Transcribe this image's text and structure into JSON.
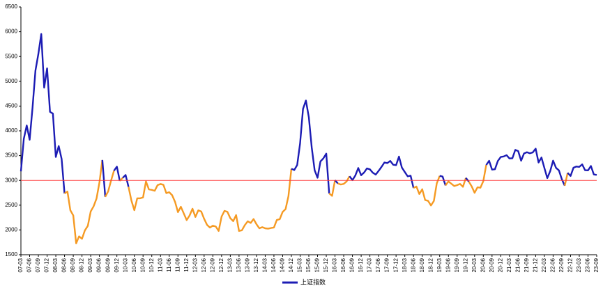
{
  "chart_data": {
    "type": "line",
    "categories": [
      "07-03",
      null,
      null,
      "07-06",
      null,
      null,
      "07-09",
      null,
      null,
      "07-12",
      null,
      null,
      "08-03",
      null,
      null,
      "08-06",
      null,
      null,
      "08-09",
      null,
      null,
      "08-12",
      null,
      null,
      "09-03",
      null,
      null,
      "09-06",
      null,
      null,
      "09-09",
      null,
      null,
      "09-12",
      null,
      null,
      "10-03",
      null,
      null,
      "10-06",
      null,
      null,
      "10-09",
      null,
      null,
      "10-12",
      null,
      null,
      "11-03",
      null,
      null,
      "11-06",
      null,
      null,
      "11-09",
      null,
      null,
      "11-12",
      null,
      null,
      "12-03",
      null,
      null,
      "12-06",
      null,
      null,
      "12-09",
      null,
      null,
      "12-12",
      null,
      null,
      "13-03",
      null,
      null,
      "13-06",
      null,
      null,
      "13-09",
      null,
      null,
      "13-12",
      null,
      null,
      "14-03",
      null,
      null,
      "14-06",
      null,
      null,
      "14-09",
      null,
      null,
      "14-12",
      null,
      null,
      "15-03",
      null,
      null,
      "15-06",
      null,
      null,
      "15-09",
      null,
      null,
      "15-12",
      null,
      null,
      "16-03",
      null,
      null,
      "16-06",
      null,
      null,
      "16-09",
      null,
      null,
      "16-12",
      null,
      null,
      "17-03",
      null,
      null,
      "17-06",
      null,
      null,
      "17-09",
      null,
      null,
      "17-12",
      null,
      null,
      "18-03",
      null,
      null,
      "18-06",
      null,
      null,
      "18-09",
      null,
      null,
      "18-12",
      null,
      null,
      "19-03",
      null,
      null,
      "19-06",
      null,
      null,
      "19-09",
      null,
      null,
      "19-12",
      null,
      null,
      "20-03",
      null,
      null,
      "20-06",
      null,
      null,
      "20-09",
      null,
      null,
      "20-12",
      null,
      null,
      "21-03",
      null,
      null,
      "21-06",
      null,
      null,
      "21-09",
      null,
      null,
      "21-12",
      null,
      null,
      "22-03",
      null,
      null,
      "22-06",
      null,
      null,
      "22-09",
      null,
      null,
      "22-12",
      null,
      null,
      "23-03",
      null,
      null,
      "23-06",
      null,
      null,
      "23-09"
    ],
    "series": [
      {
        "name": "上证指数",
        "color": "#1c1cb4",
        "below_color": "#f59a23",
        "values": [
          3183,
          3841,
          4109,
          3821,
          4471,
          5218,
          5552,
          5955,
          4871,
          5262,
          4383,
          4349,
          3473,
          3693,
          3433,
          2736,
          2775,
          2397,
          2293,
          1729,
          1871,
          1821,
          1991,
          2082,
          2373,
          2477,
          2633,
          2959,
          3412,
          2668,
          2779,
          2996,
          3195,
          3277,
          2989,
          3051,
          3109,
          2870,
          2592,
          2398,
          2638,
          2639,
          2656,
          2979,
          2820,
          2808,
          2790,
          2905,
          2928,
          2911,
          2743,
          2762,
          2701,
          2568,
          2359,
          2468,
          2333,
          2199,
          2292,
          2428,
          2262,
          2396,
          2373,
          2225,
          2103,
          2047,
          2086,
          2069,
          1980,
          2269,
          2385,
          2365,
          2237,
          2178,
          2300,
          1979,
          1994,
          2098,
          2175,
          2141,
          2220,
          2116,
          2033,
          2056,
          2033,
          2026,
          2039,
          2048,
          2201,
          2217,
          2364,
          2420,
          2683,
          3235,
          3210,
          3310,
          3748,
          4442,
          4612,
          4277,
          3664,
          3206,
          3053,
          3383,
          3445,
          3539,
          2738,
          2688,
          3004,
          2938,
          2917,
          2930,
          2979,
          3085,
          3005,
          3100,
          3250,
          3104,
          3159,
          3242,
          3223,
          3155,
          3117,
          3192,
          3273,
          3361,
          3349,
          3393,
          3317,
          3307,
          3481,
          3259,
          3169,
          3082,
          3095,
          2847,
          2876,
          2725,
          2821,
          2603,
          2588,
          2494,
          2585,
          2941,
          3091,
          3078,
          2899,
          2979,
          2933,
          2886,
          2905,
          2929,
          2871,
          3050,
          2977,
          2880,
          2750,
          2860,
          2852,
          2985,
          3310,
          3396,
          3218,
          3225,
          3392,
          3473,
          3483,
          3509,
          3442,
          3447,
          3615,
          3591,
          3397,
          3544,
          3568,
          3547,
          3564,
          3640,
          3361,
          3462,
          3252,
          3047,
          3186,
          3399,
          3253,
          3202,
          3024,
          2893,
          3151,
          3089,
          3255,
          3280,
          3273,
          3323,
          3205,
          3202,
          3291,
          3120,
          3110
        ]
      }
    ],
    "reference_line": {
      "value": 3000,
      "color": "#ff4040"
    },
    "ylim": [
      1500,
      6500
    ],
    "yticks": [
      1500,
      2000,
      2500,
      3000,
      3500,
      4000,
      4500,
      5000,
      5500,
      6000,
      6500
    ],
    "legend": "bottom"
  }
}
